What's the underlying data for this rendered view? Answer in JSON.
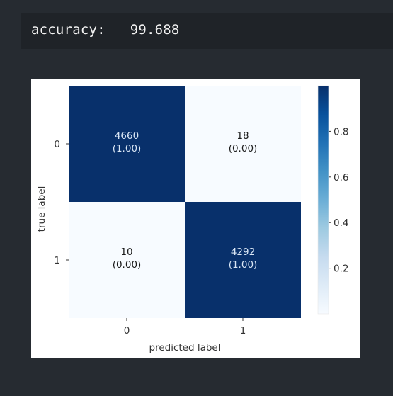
{
  "output": {
    "label": "accuracy:",
    "value": "99.688"
  },
  "colors": {
    "page_background": "#262b31",
    "output_background": "#1f2328",
    "cell_high": "#08306b",
    "cell_low": "#f7fbff",
    "text_on_dark": "#d9e6f5",
    "text_on_light": "#1a1a1a"
  },
  "chart_data": {
    "type": "heatmap",
    "colormap": "Blues",
    "xlabel": "predicted label",
    "ylabel": "true label",
    "x_categories": [
      "0",
      "1"
    ],
    "y_categories": [
      "0",
      "1"
    ],
    "counts": [
      [
        4660,
        18
      ],
      [
        10,
        4292
      ]
    ],
    "cell_labels": [
      [
        {
          "count": "4660",
          "ratio": "(1.00)"
        },
        {
          "count": "18",
          "ratio": "(0.00)"
        }
      ],
      [
        {
          "count": "10",
          "ratio": "(0.00)"
        },
        {
          "count": "4292",
          "ratio": "(1.00)"
        }
      ]
    ],
    "normalized": [
      [
        1.0,
        0.0
      ],
      [
        0.0,
        1.0
      ]
    ],
    "colorbar": {
      "range": [
        0,
        1
      ],
      "ticks": [
        0.2,
        0.4,
        0.6,
        0.8
      ],
      "tick_labels": [
        "0.2",
        "0.4",
        "0.6",
        "0.8"
      ]
    }
  }
}
